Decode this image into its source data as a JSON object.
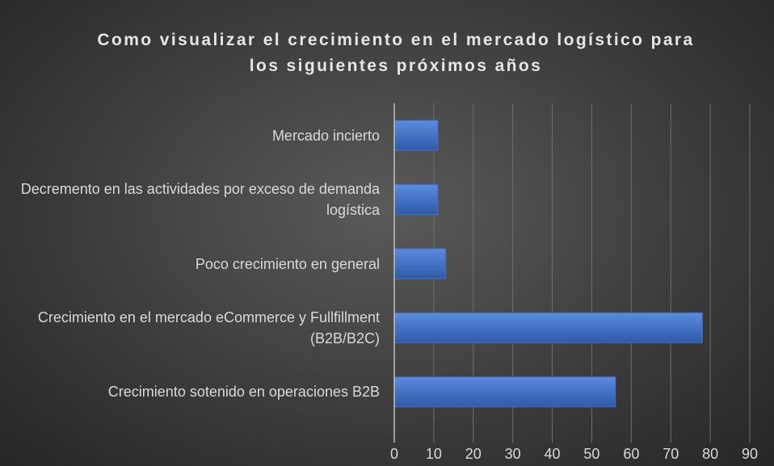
{
  "chart_data": {
    "type": "barh",
    "title": "Como visualizar el crecimiento en el mercado logístico para los siguientes próximos años",
    "categories": [
      "Mercado incierto",
      "Decremento en las actividades por exceso de demanda logística",
      "Poco crecimiento en general",
      "Crecimiento en el mercado eCommerce y Fullfillment (B2B/B2C)",
      "Crecimiento sotenido en operaciones B2B"
    ],
    "values": [
      11,
      11,
      13,
      78,
      56
    ],
    "color": "#4472c4",
    "xlim": [
      0,
      90
    ],
    "xticks": [
      0,
      10,
      20,
      30,
      40,
      50,
      60,
      70,
      80,
      90
    ],
    "grid": true
  }
}
